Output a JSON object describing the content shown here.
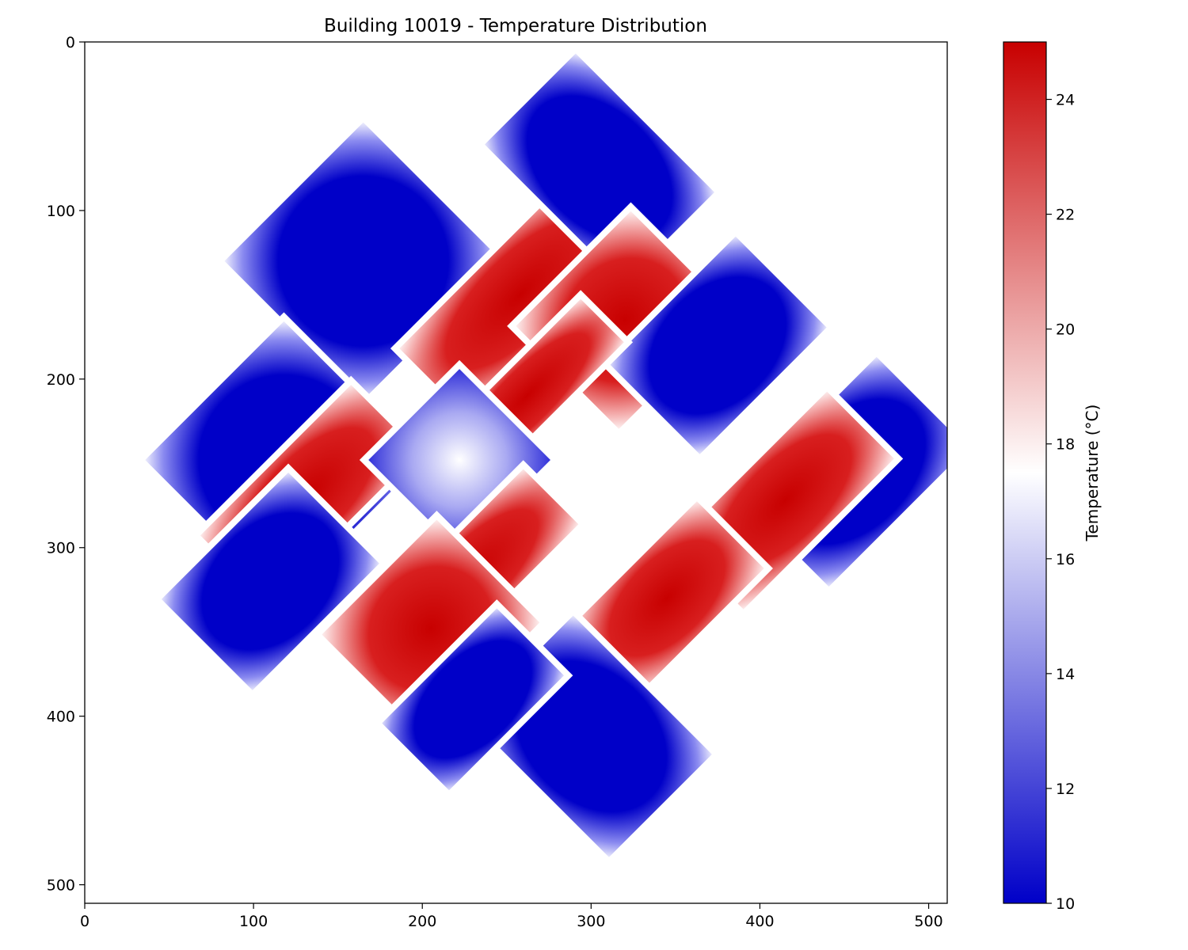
{
  "chart_data": {
    "type": "heatmap",
    "title": "Building 10019 - Temperature Distribution",
    "xlim": [
      0,
      511
    ],
    "ylim": [
      511,
      0
    ],
    "xticks": [
      0,
      100,
      200,
      300,
      400,
      500
    ],
    "yticks": [
      0,
      100,
      200,
      300,
      400,
      500
    ],
    "colorbar": {
      "label": "Temperature (°C)",
      "range": [
        10,
        25
      ],
      "ticks": [
        10,
        12,
        14,
        16,
        18,
        20,
        22,
        24
      ],
      "colormap": [
        "#0000c8",
        "#ffffff",
        "#c80000"
      ]
    },
    "footprint_rotation_deg": 45,
    "rooms": [
      {
        "name": "top-left-cold",
        "center": [
          165,
          130
        ],
        "size": [
          120,
          120
        ],
        "temp": 10
      },
      {
        "name": "top-warm",
        "center": [
          258,
          150
        ],
        "size": [
          60,
          150
        ],
        "temp": 24.5
      },
      {
        "name": "top-right-cold",
        "center": [
          305,
          75
        ],
        "size": [
          120,
          80
        ],
        "temp": 10
      },
      {
        "name": "upper-right-warm",
        "center": [
          320,
          165
        ],
        "size": [
          90,
          100
        ],
        "temp": 24.5
      },
      {
        "name": "right-cold",
        "center": [
          375,
          180
        ],
        "size": [
          80,
          110
        ],
        "temp": 10
      },
      {
        "name": "center-warm-strip",
        "center": [
          262,
          210
        ],
        "size": [
          40,
          130
        ],
        "temp": 24
      },
      {
        "name": "left-cold",
        "center": [
          118,
          248
        ],
        "size": [
          120,
          120
        ],
        "temp": 10
      },
      {
        "name": "left-warm",
        "center": [
          133,
          268
        ],
        "size": [
          60,
          130
        ],
        "temp": 24.5
      },
      {
        "name": "center-mixed",
        "center": [
          222,
          248
        ],
        "size": [
          80,
          80
        ],
        "temp": 15
      },
      {
        "name": "far-right-cold",
        "center": [
          455,
          255
        ],
        "size": [
          80,
          120
        ],
        "temp": 10
      },
      {
        "name": "far-right-warm",
        "center": [
          415,
          272
        ],
        "size": [
          60,
          130
        ],
        "temp": 24.5
      },
      {
        "name": "lower-left-cold",
        "center": [
          110,
          320
        ],
        "size": [
          80,
          110
        ],
        "temp": 10
      },
      {
        "name": "lower-mid-warm",
        "center": [
          228,
          318
        ],
        "size": [
          50,
          140
        ],
        "temp": 24
      },
      {
        "name": "lower-warm-large",
        "center": [
          205,
          348
        ],
        "size": [
          90,
          100
        ],
        "temp": 24.5
      },
      {
        "name": "lower-right-warm",
        "center": [
          345,
          330
        ],
        "size": [
          60,
          110
        ],
        "temp": 24
      },
      {
        "name": "bottom-cold",
        "center": [
          300,
          412
        ],
        "size": [
          120,
          90
        ],
        "temp": 10
      },
      {
        "name": "bottom-left-cold",
        "center": [
          230,
          390
        ],
        "size": [
          60,
          100
        ],
        "temp": 10
      }
    ]
  }
}
